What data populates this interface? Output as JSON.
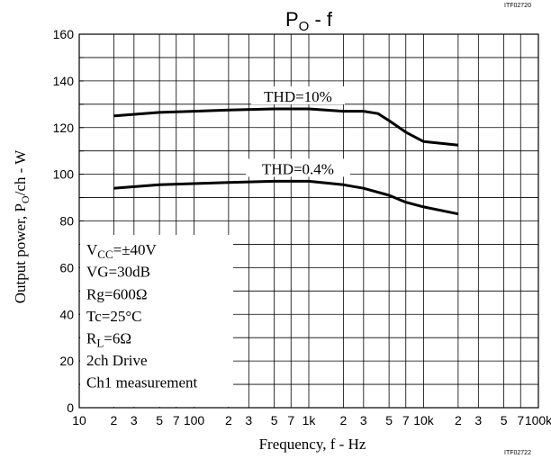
{
  "header_fragment": "",
  "code_top": "ITF02720",
  "code_bottom": "ITF02722",
  "chart_data": {
    "type": "line",
    "title_main": "P",
    "title_sub": "O",
    "title_rest": " - f",
    "xlabel": "Frequency, f - Hz",
    "ylabel_pre": "Output power, P",
    "ylabel_sub": "O",
    "ylabel_post": "/ch - W",
    "x_scale": "log",
    "xlim": [
      10,
      100000
    ],
    "ylim": [
      0,
      160
    ],
    "grid": true,
    "y_ticks": [
      "0",
      "20",
      "40",
      "60",
      "80",
      "100",
      "120",
      "140",
      "160"
    ],
    "x_ticks": [
      {
        "v": 10,
        "label": "10"
      },
      {
        "v": 20,
        "label": "2"
      },
      {
        "v": 30,
        "label": "3"
      },
      {
        "v": 50,
        "label": "5"
      },
      {
        "v": 70,
        "label": "7"
      },
      {
        "v": 100,
        "label": "100"
      },
      {
        "v": 200,
        "label": "2"
      },
      {
        "v": 300,
        "label": "3"
      },
      {
        "v": 500,
        "label": "5"
      },
      {
        "v": 700,
        "label": "7"
      },
      {
        "v": 1000,
        "label": "1k"
      },
      {
        "v": 2000,
        "label": "2"
      },
      {
        "v": 3000,
        "label": "3"
      },
      {
        "v": 5000,
        "label": "5"
      },
      {
        "v": 7000,
        "label": "7"
      },
      {
        "v": 10000,
        "label": "10k"
      },
      {
        "v": 20000,
        "label": "2"
      },
      {
        "v": 30000,
        "label": "3"
      },
      {
        "v": 50000,
        "label": "5"
      },
      {
        "v": 70000,
        "label": "7"
      },
      {
        "v": 100000,
        "label": "100k"
      }
    ],
    "series": [
      {
        "name": "THD=10%",
        "x": [
          20,
          50,
          100,
          200,
          500,
          1000,
          2000,
          3000,
          4000,
          5000,
          7000,
          10000,
          20000
        ],
        "y": [
          125,
          126.5,
          127,
          127.5,
          128,
          128,
          127,
          127,
          126,
          123,
          118,
          114,
          112.5
        ]
      },
      {
        "name": "THD=0.4%",
        "x": [
          20,
          50,
          100,
          200,
          500,
          1000,
          2000,
          3000,
          5000,
          7000,
          10000,
          20000
        ],
        "y": [
          94,
          95.5,
          96,
          96.5,
          97,
          97,
          95.5,
          94,
          91,
          88,
          86,
          83
        ]
      }
    ],
    "conditions": [
      {
        "main": "V",
        "sub": "CC",
        "rest": "=±40V"
      },
      {
        "main": "VG=30dB",
        "sub": "",
        "rest": ""
      },
      {
        "main": "Rg=600Ω",
        "sub": "",
        "rest": ""
      },
      {
        "main": "Tc=25°C",
        "sub": "",
        "rest": ""
      },
      {
        "main": "R",
        "sub": "L",
        "rest": "=6Ω"
      },
      {
        "main": "2ch Drive",
        "sub": "",
        "rest": ""
      },
      {
        "main": "Ch1 measurement",
        "sub": "",
        "rest": ""
      }
    ]
  }
}
